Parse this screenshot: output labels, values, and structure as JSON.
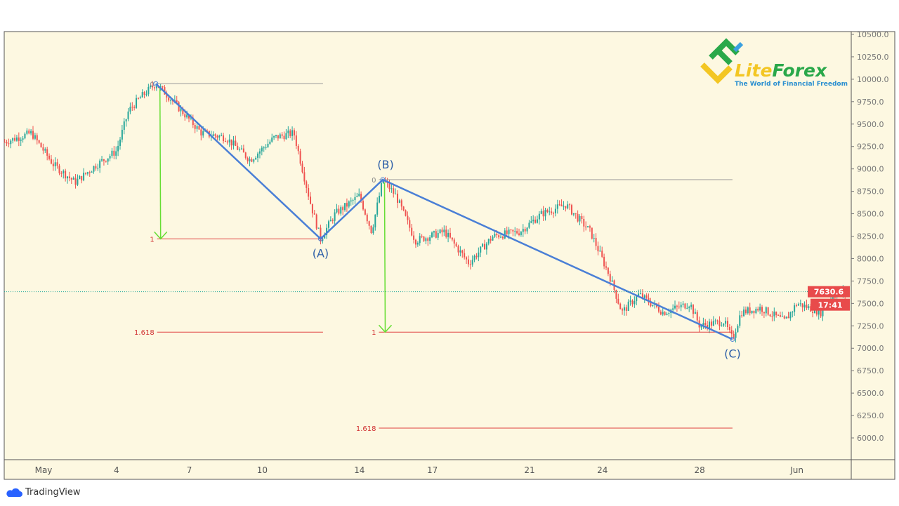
{
  "chart_data": {
    "type": "candlestick",
    "title": "",
    "ylim": [
      6000,
      10500
    ],
    "y_ticks": [
      "10500.0",
      "10250.0",
      "10000.0",
      "9750.0",
      "9500.0",
      "9250.0",
      "9000.0",
      "8750.0",
      "8500.0",
      "8250.0",
      "8000.0",
      "7750.0",
      "7500.0",
      "7250.0",
      "7000.0",
      "6750.0",
      "6500.0",
      "6250.0",
      "6000.0"
    ],
    "y_tick_values": [
      10500,
      10250,
      10000,
      9750,
      9500,
      9250,
      9000,
      8750,
      8500,
      8250,
      8000,
      7750,
      7500,
      7250,
      7000,
      6750,
      6500,
      6250,
      6000
    ],
    "x_ticks": [
      {
        "label": "May",
        "day": 0
      },
      {
        "label": "4",
        "day": 3
      },
      {
        "label": "7",
        "day": 6
      },
      {
        "label": "10",
        "day": 9
      },
      {
        "label": "14",
        "day": 13
      },
      {
        "label": "17",
        "day": 16
      },
      {
        "label": "21",
        "day": 20
      },
      {
        "label": "24",
        "day": 23
      },
      {
        "label": "28",
        "day": 27
      },
      {
        "label": "Jun",
        "day": 31
      }
    ],
    "price_path": [
      [
        -1.6,
        9300
      ],
      [
        -0.5,
        9400
      ],
      [
        0.4,
        9050
      ],
      [
        1.3,
        8850
      ],
      [
        2.2,
        9050
      ],
      [
        3,
        9200
      ],
      [
        3.5,
        9650
      ],
      [
        4,
        9800
      ],
      [
        5,
        9850
      ],
      [
        4.62,
        9950
      ],
      [
        5.5,
        9700
      ],
      [
        6.5,
        9400
      ],
      [
        7.5,
        9350
      ],
      [
        8.5,
        9100
      ],
      [
        9.5,
        9350
      ],
      [
        10.3,
        9400
      ],
      [
        11,
        8600
      ],
      [
        11.4,
        8220
      ],
      [
        12,
        8500
      ],
      [
        13,
        8700
      ],
      [
        13.5,
        8300
      ],
      [
        13.96,
        8880
      ],
      [
        14.5,
        8700
      ],
      [
        15.3,
        8200
      ],
      [
        16.5,
        8300
      ],
      [
        17.5,
        7950
      ],
      [
        18.5,
        8250
      ],
      [
        19.6,
        8300
      ],
      [
        20.5,
        8500
      ],
      [
        21.5,
        8600
      ],
      [
        22.5,
        8300
      ],
      [
        23.3,
        7800
      ],
      [
        23.8,
        7400
      ],
      [
        24.5,
        7600
      ],
      [
        25.5,
        7400
      ],
      [
        26.6,
        7500
      ],
      [
        27,
        7250
      ],
      [
        28,
        7300
      ],
      [
        28.35,
        7100
      ],
      [
        28.7,
        7400
      ],
      [
        29.5,
        7450
      ],
      [
        30.5,
        7300
      ],
      [
        31,
        7500
      ],
      [
        32,
        7400
      ],
      [
        32.5,
        7600
      ],
      [
        33.2,
        7630
      ]
    ],
    "waves": [
      {
        "label": "(A)",
        "day": 11.4,
        "price": 8220
      },
      {
        "label": "(B)",
        "day": 13.96,
        "price": 8880
      },
      {
        "label": "(C)",
        "day": 28.35,
        "price": 7100
      }
    ],
    "wave_start": {
      "day": 4.62,
      "price": 9950
    },
    "fib_sets": [
      {
        "from_day": 4.5,
        "to_day": 11.5,
        "levels": [
          {
            "label": "0",
            "price": 9950
          },
          {
            "label": "1",
            "price": 8220
          },
          {
            "label": "1.618",
            "price": 7180
          }
        ]
      },
      {
        "from_day": 13.8,
        "to_day": 28.35,
        "levels": [
          {
            "label": "0",
            "price": 8880
          },
          {
            "label": "1",
            "price": 7180
          },
          {
            "label": "1.618",
            "price": 6110
          }
        ]
      }
    ],
    "current_price": 7630.6,
    "current_price_label": "7630.6",
    "countdown_label": "17:41"
  },
  "logo": {
    "name": "LiteForex",
    "tagline": "The World of Financial Freedom"
  },
  "footer": {
    "brand": "TradingView"
  },
  "colors": {
    "bg": "#fdf8e1",
    "up": "#26a69a",
    "down": "#ef5350",
    "wave": "#4a7fd6",
    "fib_red": "#e04040",
    "arrow": "#66dd33"
  }
}
